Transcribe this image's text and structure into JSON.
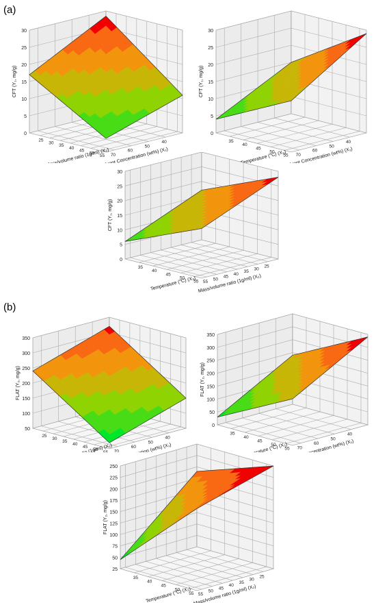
{
  "panels": [
    {
      "label": "(a)"
    },
    {
      "label": "(b)"
    }
  ],
  "chart_data": [
    {
      "type": "surface3d",
      "panel": "(a)",
      "zlabel": "CFT (Y₁, mg/g)",
      "xlabel": "Solvent Concentration (wt%) (X₁)",
      "ylabel": "Mass/volume ratio (1g/ml) (X₂)",
      "x_ticks": [
        "40",
        "50",
        "60",
        "70"
      ],
      "y_ticks": [
        "25",
        "30",
        "35",
        "40",
        "45",
        "50",
        "55"
      ],
      "z_ticks": [
        "0",
        "5",
        "10",
        "15",
        "20",
        "25",
        "30"
      ],
      "zlim": [
        0,
        30
      ],
      "corner_values": {
        "xmin_ymin": 28.5,
        "xmax_ymin": 17,
        "xmin_ymax": 11,
        "xmax_ymax": 4
      }
    },
    {
      "type": "surface3d",
      "panel": "(a)",
      "zlabel": "CFT (Y₁, mg/g)",
      "xlabel": "Solvent Concentration (wt%) (X₁)",
      "ylabel": "Temperature (°C) (X₃)",
      "x_ticks": [
        "40",
        "50",
        "60",
        "70"
      ],
      "y_ticks": [
        "35",
        "40",
        "45",
        "50",
        "55"
      ],
      "z_ticks": [
        "0",
        "5",
        "10",
        "15",
        "20",
        "25",
        "30"
      ],
      "zlim": [
        0,
        30
      ],
      "corner_values": {
        "xmin_ymin": 15,
        "xmax_ymin": 4,
        "xmin_ymax": 29,
        "xmax_ymax": 15
      }
    },
    {
      "type": "surface3d",
      "panel": "(a)",
      "zlabel": "CFT (Y₁, mg/g)",
      "xlabel": "Mass/volume ratio (1g/ml) (X₂)",
      "ylabel": "Temperature (°C) (X₃)",
      "x_ticks": [
        "25",
        "30",
        "35",
        "40",
        "45",
        "50",
        "55"
      ],
      "y_ticks": [
        "35",
        "40",
        "45",
        "50",
        "55"
      ],
      "z_ticks": [
        "0",
        "5",
        "10",
        "15",
        "20",
        "25",
        "30"
      ],
      "zlim": [
        0,
        30
      ],
      "corner_values": {
        "xmin_ymin": 17,
        "xmax_ymin": 6,
        "xmin_ymax": 28,
        "xmax_ymax": 17
      }
    },
    {
      "type": "surface3d",
      "panel": "(b)",
      "zlabel": "FLAT (Y₂, mg/g)",
      "xlabel": "Solvent Concentration (wt%) (X₁)",
      "ylabel": "Mass/volume ratio (1g/ml) (X₂)",
      "x_ticks": [
        "40",
        "50",
        "60",
        "70"
      ],
      "y_ticks": [
        "25",
        "30",
        "35",
        "40",
        "45",
        "50",
        "55"
      ],
      "z_ticks": [
        "50",
        "100",
        "150",
        "200",
        "250",
        "300",
        "350"
      ],
      "zlim": [
        50,
        350
      ],
      "corner_values": {
        "xmin_ymin": 320,
        "xmax_ymin": 240,
        "xmin_ymax": 150,
        "xmax_ymax": 70
      }
    },
    {
      "type": "surface3d",
      "panel": "(b)",
      "zlabel": "FLAT (Y₂, mg/g)",
      "xlabel": "Solvent Concentration (wt%) (X₁)",
      "ylabel": "Temperature (°C) (X₃)",
      "x_ticks": [
        "40",
        "50",
        "60",
        "70"
      ],
      "y_ticks": [
        "35",
        "40",
        "45",
        "50",
        "55"
      ],
      "z_ticks": [
        "0",
        "50",
        "100",
        "150",
        "200",
        "250",
        "300",
        "350"
      ],
      "zlim": [
        0,
        350
      ],
      "corner_values": {
        "xmin_ymin": 190,
        "xmax_ymin": 30,
        "xmin_ymax": 340,
        "xmax_ymax": 180
      }
    },
    {
      "type": "surface3d",
      "panel": "(b)",
      "zlabel": "FLAT (Y₂, mg/g)",
      "xlabel": "Mass/volume ratio (1g/ml) (X₂)",
      "ylabel": "Temperature (°C) (X₃)",
      "x_ticks": [
        "25",
        "30",
        "35",
        "40",
        "45",
        "50",
        "55"
      ],
      "y_ticks": [
        "35",
        "40",
        "45",
        "50",
        "55"
      ],
      "z_ticks": [
        "25",
        "50",
        "75",
        "100",
        "125",
        "150",
        "175",
        "200",
        "225",
        "250"
      ],
      "zlim": [
        25,
        250
      ],
      "corner_values": {
        "xmin_ymin": 190,
        "xmax_ymin": 45,
        "xmin_ymax": 250,
        "xmax_ymax": 205
      }
    }
  ]
}
